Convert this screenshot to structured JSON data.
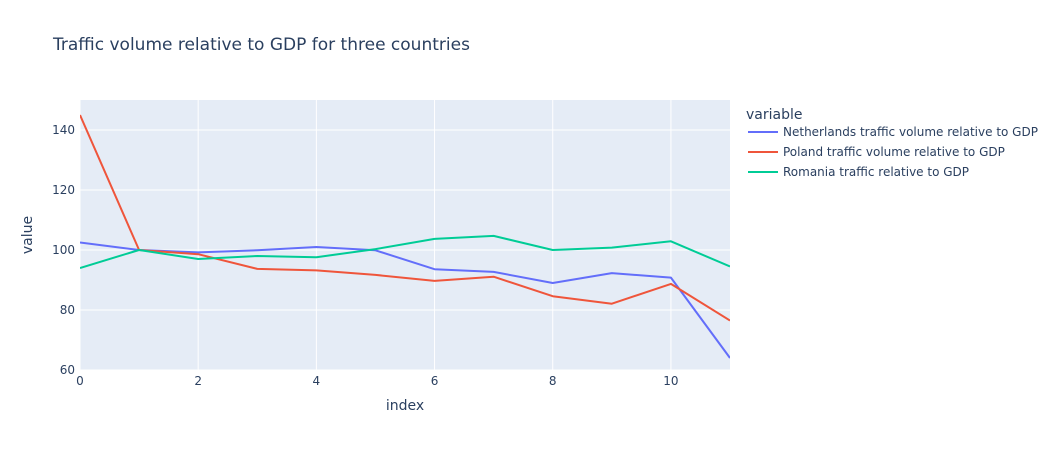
{
  "chart_data": {
    "type": "line",
    "title": "Traffic volume relative to GDP for three countries",
    "xlabel": "index",
    "ylabel": "value",
    "xlim": [
      0,
      11
    ],
    "ylim": [
      60,
      150
    ],
    "x_ticks": [
      0,
      2,
      4,
      6,
      8,
      10
    ],
    "y_ticks": [
      60,
      80,
      100,
      120,
      140
    ],
    "grid": true,
    "legend_title": "variable",
    "legend_position": "right",
    "x": [
      0,
      1,
      2,
      3,
      4,
      5,
      6,
      7,
      8,
      9,
      10,
      11
    ],
    "series": [
      {
        "name": "Netherlands traffic volume relative to GDP",
        "color": "#636efa",
        "values": [
          102.5,
          100.0,
          99.2,
          99.9,
          101.0,
          99.9,
          93.6,
          92.7,
          89.0,
          92.3,
          90.8,
          64.0
        ]
      },
      {
        "name": "Poland traffic volume relative to GDP",
        "color": "#ef553b",
        "values": [
          145.0,
          100.0,
          98.6,
          93.7,
          93.2,
          91.7,
          89.7,
          91.1,
          84.6,
          82.1,
          88.7,
          76.5
        ]
      },
      {
        "name": "Romania traffic relative to GDP",
        "color": "#00cc96",
        "values": [
          94.0,
          100.0,
          97.0,
          98.0,
          97.6,
          100.3,
          103.7,
          104.7,
          100.0,
          100.8,
          102.9,
          94.5
        ]
      }
    ]
  }
}
